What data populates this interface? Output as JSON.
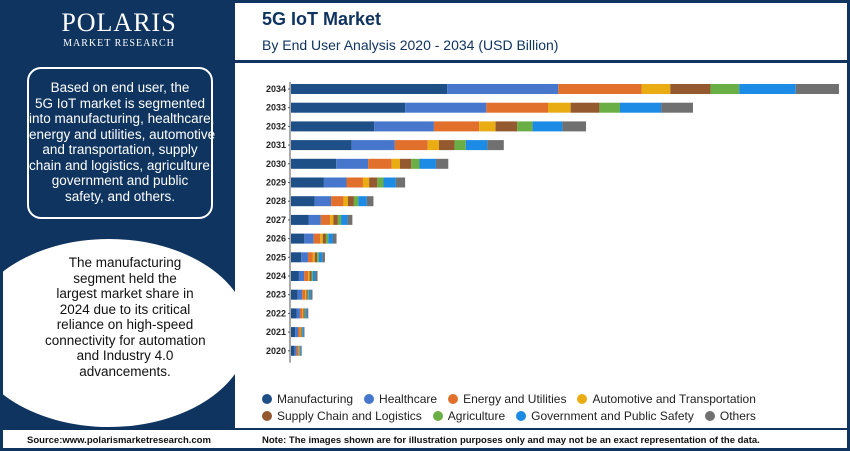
{
  "brand": {
    "name": "POLARIS",
    "tagline": "MARKET RESEARCH"
  },
  "header": {
    "title": "5G IoT Market",
    "subtitle": "By End User Analysis 2020 - 2034 (USD Billion)"
  },
  "sidebar": {
    "summary_lines": [
      "Based on end user, the",
      "5G IoT market is segmented",
      "into manufacturing, healthcare,",
      "energy and utilities, automotive",
      "and transportation, supply",
      "chain and logistics, agriculture,",
      "government and public",
      "safety, and others."
    ],
    "highlight_lines": [
      "The manufacturing",
      "segment held the",
      "largest market share in",
      "2024 due to its critical",
      "reliance on high-speed",
      "connectivity for automation",
      "and Industry 4.0",
      "advancements."
    ]
  },
  "colors": {
    "brand_navy": "#0f3460",
    "series": [
      "#1e4f86",
      "#4677cc",
      "#e0702b",
      "#e9ad13",
      "#94592f",
      "#6aaf45",
      "#1b8be6",
      "#707070"
    ]
  },
  "chart_data": {
    "type": "bar",
    "orientation": "horizontal",
    "stacked": true,
    "categories": [
      "2034",
      "2033",
      "2032",
      "2031",
      "2030",
      "2029",
      "2028",
      "2027",
      "2026",
      "2025",
      "2024",
      "2023",
      "2022",
      "2021",
      "2020"
    ],
    "series": [
      {
        "name": "Manufacturing",
        "values": [
          152,
          111,
          81,
          59,
          44,
          32,
          23,
          17,
          13,
          10,
          7.7,
          6.5,
          5.4,
          4.1,
          3.3
        ]
      },
      {
        "name": "Healthcare",
        "values": [
          108,
          79,
          58,
          42,
          31,
          22,
          16,
          12,
          9,
          6.5,
          5.1,
          4.3,
          3.3,
          2.7,
          2.1
        ]
      },
      {
        "name": "Energy and Utilities",
        "values": [
          81,
          60,
          44,
          32,
          23,
          16,
          12,
          9,
          6.5,
          4.8,
          3.9,
          3.0,
          2.4,
          1.9,
          1.5
        ]
      },
      {
        "name": "Automotive and Transportation",
        "values": [
          28,
          22,
          16,
          11,
          8,
          6,
          4.4,
          3.3,
          2.4,
          1.8,
          1.4,
          1.1,
          0.9,
          0.7,
          0.5
        ]
      },
      {
        "name": "Supply Chain and Logistics",
        "values": [
          39,
          28,
          21,
          15,
          11,
          8,
          5.8,
          4.3,
          3.1,
          2.3,
          1.8,
          1.4,
          1.1,
          0.9,
          0.7
        ]
      },
      {
        "name": "Agriculture",
        "values": [
          28,
          20,
          15,
          11,
          8,
          6,
          4.2,
          3.1,
          2.3,
          1.7,
          1.3,
          1.0,
          0.8,
          0.6,
          0.5
        ]
      },
      {
        "name": "Government and Public Safety",
        "values": [
          55,
          40,
          29,
          21,
          16,
          12,
          8.4,
          6.2,
          4.5,
          3.3,
          2.6,
          2.0,
          1.6,
          1.2,
          1.0
        ]
      },
      {
        "name": "Others",
        "values": [
          42,
          31,
          23,
          16,
          12,
          9,
          6.4,
          4.8,
          3.5,
          2.6,
          2.0,
          1.6,
          1.3,
          1.0,
          0.8
        ]
      }
    ],
    "title": "5G IoT Market",
    "subtitle": "By End User Analysis 2020 - 2034 (USD Billion)",
    "xlabel": "",
    "ylabel": "",
    "xlim": [
      0,
      535
    ],
    "grid": false,
    "legend_position": "bottom"
  },
  "footer": {
    "source": "Source:www.polarismarketresearch.com",
    "note": "Note: The images shown are for illustration purposes only and may not be an exact representation of the data."
  }
}
